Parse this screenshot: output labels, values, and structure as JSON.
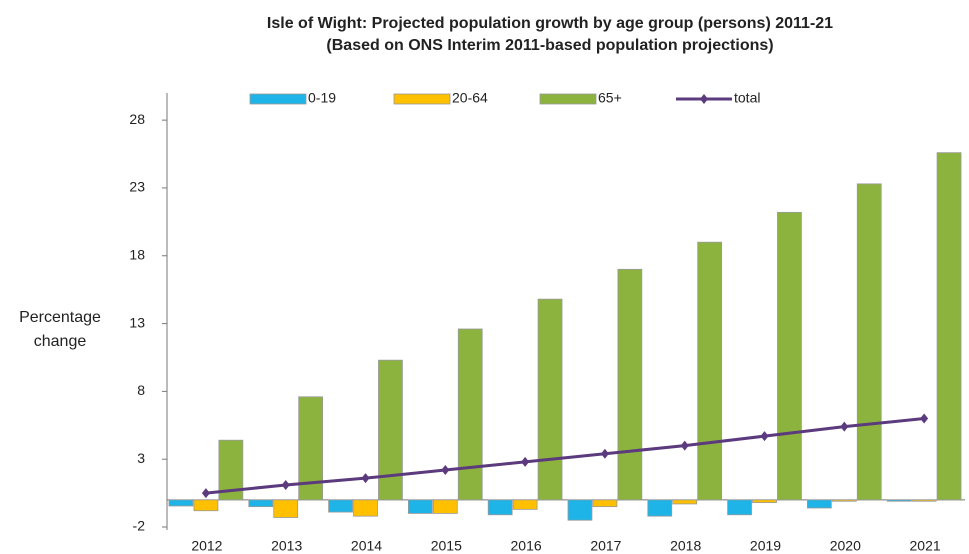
{
  "chart_data": {
    "type": "bar",
    "title": "Isle of Wight: Projected population growth by age group (persons) 2011-21",
    "subtitle": "(Based on ONS Interim 2011-based population projections)",
    "y_label": "Percentage change",
    "categories": [
      "2012",
      "2013",
      "2014",
      "2015",
      "2016",
      "2017",
      "2018",
      "2019",
      "2020",
      "2021"
    ],
    "series": [
      {
        "name": "0-19",
        "color": "#1fb4e8",
        "type": "bar",
        "values": [
          -0.45,
          -0.5,
          -0.9,
          -1.0,
          -1.1,
          -1.5,
          -1.2,
          -1.1,
          -0.6,
          -0.1
        ]
      },
      {
        "name": "20-64",
        "color": "#ffc000",
        "type": "bar",
        "values": [
          -0.8,
          -1.3,
          -1.2,
          -1.0,
          -0.7,
          -0.5,
          -0.3,
          -0.2,
          -0.1,
          -0.1
        ]
      },
      {
        "name": "65+",
        "color": "#8db33f",
        "type": "bar",
        "values": [
          4.4,
          7.6,
          10.3,
          12.6,
          14.8,
          17.0,
          19.0,
          21.2,
          23.3,
          25.6
        ]
      },
      {
        "name": "total",
        "color": "#5b3a7e",
        "type": "line",
        "values": [
          0.5,
          1.1,
          1.6,
          2.2,
          2.8,
          3.4,
          4.0,
          4.7,
          5.4,
          6.0
        ]
      }
    ],
    "ylim": [
      -2,
      30
    ],
    "yticks": [
      -2,
      3,
      8,
      13,
      18,
      23,
      28
    ],
    "grid": false,
    "legend": "top"
  }
}
